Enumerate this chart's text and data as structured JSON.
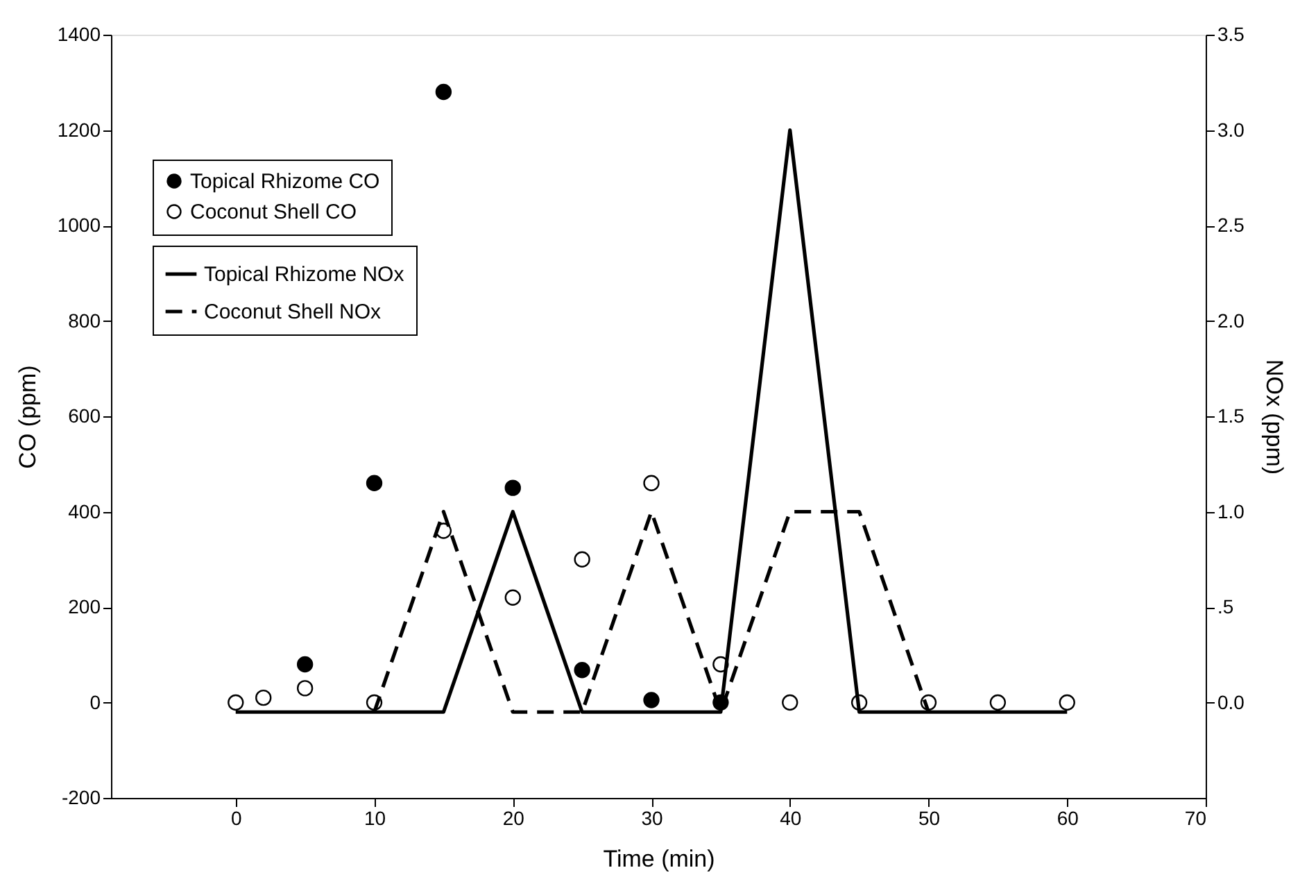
{
  "chart_data": {
    "type": "scatter",
    "xlabel": "Time (min)",
    "ylabel": "CO (ppm)",
    "y2label": "NOx (ppm)",
    "xlim": [
      -9,
      70
    ],
    "xticks": [
      0,
      10,
      20,
      30,
      40,
      50,
      60,
      70
    ],
    "ylim": [
      -200,
      1400
    ],
    "yticks": [
      -200,
      0,
      200,
      400,
      600,
      800,
      1000,
      1200,
      1400
    ],
    "y2lim": [
      -0.5,
      3.5
    ],
    "y2ticks": [
      {
        "value": 0,
        "label": "0.0"
      },
      {
        "value": 0.5,
        "label": ".5"
      },
      {
        "value": 1,
        "label": "1.0"
      },
      {
        "value": 1.5,
        "label": "1.5"
      },
      {
        "value": 2,
        "label": "2.0"
      },
      {
        "value": 2.5,
        "label": "2.5"
      },
      {
        "value": 3,
        "label": "3.0"
      },
      {
        "value": 3.5,
        "label": "3.5"
      }
    ],
    "legend": "top left",
    "grid": false,
    "series": [
      {
        "name": "Topical Rhizome CO",
        "marker": "circle",
        "color": "#000000",
        "x": [
          5,
          10,
          15,
          20,
          25,
          30,
          35
        ],
        "values": [
          80,
          460,
          1280,
          450,
          68,
          5,
          0
        ]
      },
      {
        "name": "Coconut Shell CO",
        "marker": "circle",
        "color": "#ffffff",
        "x": [
          0,
          2,
          5,
          10,
          15,
          20,
          25,
          30,
          35,
          40,
          45,
          50,
          55,
          60
        ],
        "values": [
          0,
          10,
          30,
          0,
          360,
          220,
          300,
          460,
          80,
          0,
          0,
          0,
          0,
          0
        ]
      },
      {
        "name": "Topical Rhizome NOx",
        "type": "line",
        "axis": "y2",
        "color": "#000000",
        "line_style": "solid",
        "x": [
          0,
          5,
          10,
          15,
          20,
          25,
          30,
          35,
          40,
          45,
          50,
          55,
          60
        ],
        "values": [
          -0.05,
          -0.05,
          -0.05,
          -0.05,
          1.0,
          -0.05,
          -0.05,
          -0.05,
          3.0,
          -0.05,
          -0.05,
          -0.05,
          -0.05
        ]
      },
      {
        "name": "Coconut Shell NOx",
        "type": "line",
        "axis": "y2",
        "color": "#000000",
        "line_style": "dashed",
        "x": [
          10,
          15,
          20,
          25,
          30,
          35,
          40,
          45,
          50
        ],
        "values": [
          -0.05,
          1.0,
          -0.05,
          -0.05,
          1.0,
          -0.05,
          1.0,
          1.0,
          -0.05
        ]
      }
    ]
  }
}
